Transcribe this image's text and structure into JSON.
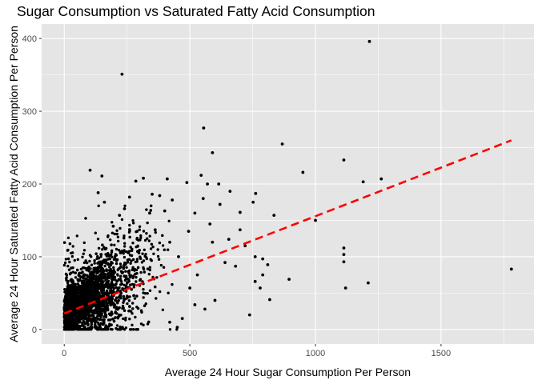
{
  "chart_data": {
    "type": "scatter",
    "title": "Sugar Consumption vs Saturated Fatty Acid Consumption",
    "xlabel": "Average 24 Hour Sugar Consumption Per Person",
    "ylabel": "Average 24 Hour Saturated Fatty Acid Consumption Per Person",
    "xlim": [
      -90,
      1870
    ],
    "ylim": [
      -20,
      420
    ],
    "x_ticks": [
      0,
      500,
      1000,
      1500
    ],
    "y_ticks": [
      0,
      100,
      200,
      300,
      400
    ],
    "grid": true,
    "background": "#e5e5e5",
    "grid_color": "#ffffff",
    "point_color": "#000000",
    "trend_line": {
      "style": "dashed",
      "color": "#ff0000",
      "x": [
        0,
        1780
      ],
      "y": [
        22,
        260
      ]
    },
    "outliers": [
      [
        1215,
        396
      ],
      [
        230,
        351
      ],
      [
        555,
        277
      ],
      [
        590,
        243
      ],
      [
        868,
        255
      ],
      [
        1113,
        233
      ],
      [
        950,
        216
      ],
      [
        1262,
        207
      ],
      [
        1190,
        203
      ],
      [
        1000,
        150
      ],
      [
        1113,
        112
      ],
      [
        1113,
        103
      ],
      [
        1113,
        93
      ],
      [
        1210,
        64
      ],
      [
        1120,
        57
      ],
      [
        1780,
        83
      ],
      [
        895,
        69
      ],
      [
        780,
        57
      ],
      [
        818,
        41
      ],
      [
        738,
        20
      ],
      [
        103,
        219
      ],
      [
        150,
        211
      ],
      [
        285,
        204
      ],
      [
        315,
        208
      ],
      [
        410,
        207
      ],
      [
        570,
        200
      ],
      [
        615,
        200
      ],
      [
        488,
        202
      ],
      [
        545,
        212
      ],
      [
        553,
        180
      ],
      [
        660,
        190
      ],
      [
        762,
        187
      ],
      [
        620,
        172
      ],
      [
        700,
        161
      ],
      [
        752,
        175
      ],
      [
        835,
        157
      ],
      [
        655,
        124
      ],
      [
        700,
        137
      ],
      [
        720,
        115
      ],
      [
        760,
        100
      ],
      [
        790,
        97
      ],
      [
        810,
        89
      ],
      [
        790,
        75
      ],
      [
        760,
        66
      ],
      [
        682,
        87
      ],
      [
        640,
        92
      ],
      [
        600,
        40
      ],
      [
        560,
        28
      ],
      [
        520,
        34
      ],
      [
        470,
        15
      ],
      [
        450,
        3
      ],
      [
        420,
        10
      ],
      [
        500,
        57
      ],
      [
        530,
        75
      ],
      [
        400,
        163
      ],
      [
        380,
        184
      ],
      [
        340,
        160
      ],
      [
        362,
        137
      ],
      [
        420,
        120
      ],
      [
        455,
        100
      ],
      [
        260,
        182
      ],
      [
        240,
        166
      ],
      [
        220,
        157
      ],
      [
        160,
        175
      ],
      [
        135,
        188
      ],
      [
        195,
        142
      ],
      [
        520,
        160
      ],
      [
        580,
        145
      ],
      [
        590,
        120
      ],
      [
        495,
        135
      ],
      [
        430,
        178
      ],
      [
        350,
        186
      ]
    ],
    "dense_cloud": {
      "x_range": [
        0,
        560
      ],
      "y_range": [
        0,
        170
      ],
      "note": "several thousand points concentrated near x 50-350, y 10-110"
    }
  }
}
